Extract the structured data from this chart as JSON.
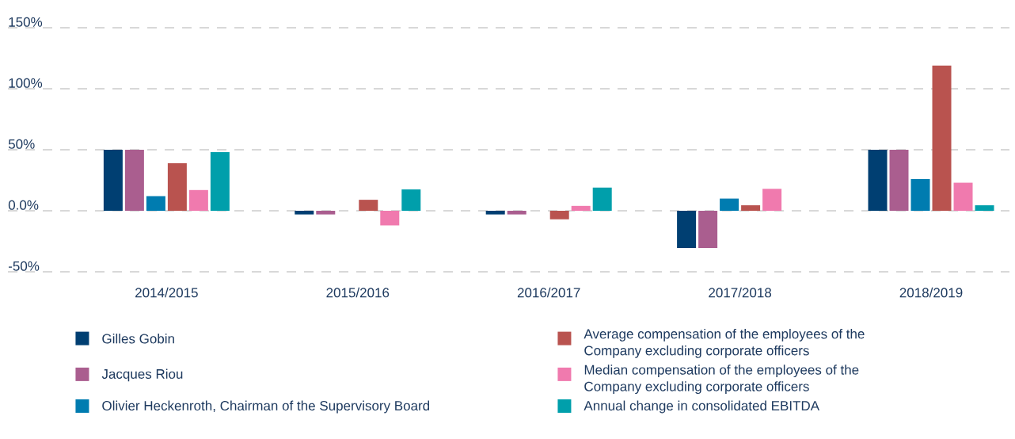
{
  "chart_data": {
    "type": "bar",
    "categories": [
      "2014/2015",
      "2015/2016",
      "2016/2017",
      "2017/2018",
      "2018/2019"
    ],
    "series": [
      {
        "name": "Gilles Gobin",
        "color": "#003f72",
        "values": [
          50,
          -3,
          -3,
          -30.5,
          50
        ]
      },
      {
        "name": "Jacques Riou",
        "color": "#aa5e8f",
        "values": [
          50,
          -3,
          -3,
          -30.5,
          50
        ]
      },
      {
        "name": "Olivier Heckenroth, Chairman of the Supervisory Board",
        "color": "#007cb0",
        "values": [
          12,
          0,
          0,
          10,
          26
        ]
      },
      {
        "name": "Average compensation of the employees of the Company excluding corporate officers",
        "color": "#b9534f",
        "values": [
          39,
          9,
          -7,
          4.5,
          119
        ]
      },
      {
        "name": "Median compensation of the employees of the Company excluding corporate officers",
        "color": "#f07aae",
        "values": [
          17,
          -12,
          4,
          18,
          23
        ]
      },
      {
        "name": "Annual change in consolidated EBITDA",
        "color": "#009fab",
        "values": [
          48,
          17.5,
          19,
          0,
          4.5
        ]
      }
    ],
    "ylim": [
      -50,
      150
    ],
    "yticks": [
      {
        "value": -50,
        "label": "-50%"
      },
      {
        "value": 0,
        "label": "0.0%"
      },
      {
        "value": 50,
        "label": "50%"
      },
      {
        "value": 100,
        "label": "100%"
      },
      {
        "value": 150,
        "label": "150%"
      }
    ],
    "grid": "y",
    "legend": "bottom"
  }
}
